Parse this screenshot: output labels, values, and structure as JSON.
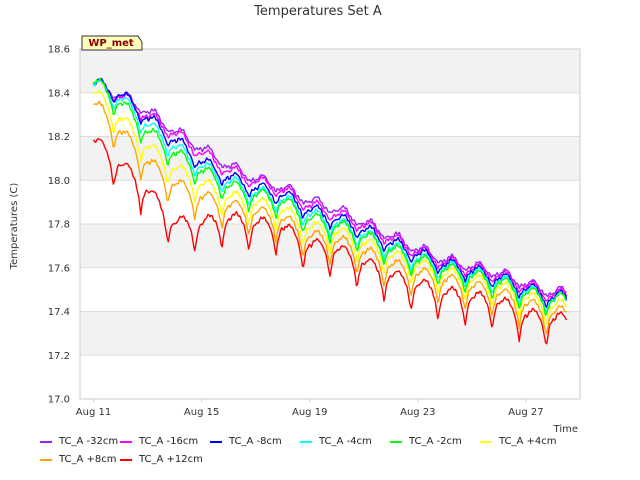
{
  "chart_data": {
    "type": "line",
    "title": "Temperatures Set A",
    "ylabel": "Temperatures (C)",
    "xlabel": "Time",
    "badge": "WP_met",
    "ylim": [
      17.0,
      18.6
    ],
    "xlim": [
      "2023-08-10T12:00",
      "2023-08-29T00:00"
    ],
    "yticks": [
      "17.0",
      "17.2",
      "17.4",
      "17.6",
      "17.8",
      "18.0",
      "18.2",
      "18.4",
      "18.6"
    ],
    "xticks": [
      {
        "date": "2023-08-11",
        "label": "Aug 11"
      },
      {
        "date": "2023-08-15",
        "label": "Aug 15"
      },
      {
        "date": "2023-08-19",
        "label": "Aug 19"
      },
      {
        "date": "2023-08-23",
        "label": "Aug 23"
      },
      {
        "date": "2023-08-27",
        "label": "Aug 27"
      }
    ],
    "grid": true,
    "legend_position": "bottom",
    "x_dates": [
      "2023-08-11",
      "2023-08-12",
      "2023-08-13",
      "2023-08-14",
      "2023-08-15",
      "2023-08-16",
      "2023-08-17",
      "2023-08-18",
      "2023-08-19",
      "2023-08-20",
      "2023-08-21",
      "2023-08-22",
      "2023-08-23",
      "2023-08-24",
      "2023-08-25",
      "2023-08-26",
      "2023-08-27",
      "2023-08-28"
    ],
    "series": [
      {
        "name": "TC_A -32cm",
        "color": "#a020f0",
        "values": [
          18.44,
          18.38,
          18.31,
          18.22,
          18.14,
          18.06,
          18.0,
          17.96,
          17.9,
          17.86,
          17.8,
          17.74,
          17.68,
          17.63,
          17.6,
          17.57,
          17.52,
          17.48
        ]
      },
      {
        "name": "TC_A -16cm",
        "color": "#ff00ff",
        "values": [
          18.44,
          18.38,
          18.29,
          18.21,
          18.12,
          18.04,
          17.99,
          17.95,
          17.88,
          17.84,
          17.79,
          17.73,
          17.67,
          17.62,
          17.59,
          17.56,
          17.51,
          17.47
        ]
      },
      {
        "name": "TC_A -8cm",
        "color": "#0000ff",
        "values": [
          18.44,
          18.39,
          18.28,
          18.18,
          18.08,
          18.01,
          17.96,
          17.93,
          17.86,
          17.82,
          17.77,
          17.71,
          17.66,
          17.61,
          17.58,
          17.55,
          17.5,
          17.46
        ]
      },
      {
        "name": "TC_A -4cm",
        "color": "#00ffff",
        "values": [
          18.44,
          18.37,
          18.25,
          18.15,
          18.06,
          17.99,
          17.94,
          17.91,
          17.84,
          17.8,
          17.75,
          17.69,
          17.64,
          17.6,
          17.57,
          17.54,
          17.49,
          17.45
        ]
      },
      {
        "name": "TC_A -2cm",
        "color": "#00ff00",
        "values": [
          18.45,
          18.35,
          18.22,
          18.12,
          18.04,
          17.97,
          17.93,
          17.9,
          17.82,
          17.79,
          17.74,
          17.68,
          17.63,
          17.59,
          17.56,
          17.53,
          17.48,
          17.45
        ]
      },
      {
        "name": "TC_A +4cm",
        "color": "#ffff00",
        "values": [
          18.4,
          18.28,
          18.15,
          18.05,
          17.98,
          17.92,
          17.89,
          17.86,
          17.78,
          17.76,
          17.71,
          17.65,
          17.61,
          17.57,
          17.54,
          17.51,
          17.46,
          17.42
        ]
      },
      {
        "name": "TC_A +8cm",
        "color": "#ffa500",
        "values": [
          18.35,
          18.22,
          18.08,
          17.98,
          17.92,
          17.88,
          17.85,
          17.82,
          17.74,
          17.72,
          17.67,
          17.61,
          17.57,
          17.54,
          17.51,
          17.48,
          17.43,
          17.39
        ]
      },
      {
        "name": "TC_A +12cm",
        "color": "#ff0000",
        "values": [
          18.18,
          18.07,
          17.95,
          17.8,
          17.8,
          17.82,
          17.8,
          17.78,
          17.7,
          17.68,
          17.62,
          17.56,
          17.52,
          17.48,
          17.46,
          17.44,
          17.38,
          17.36
        ]
      }
    ]
  }
}
